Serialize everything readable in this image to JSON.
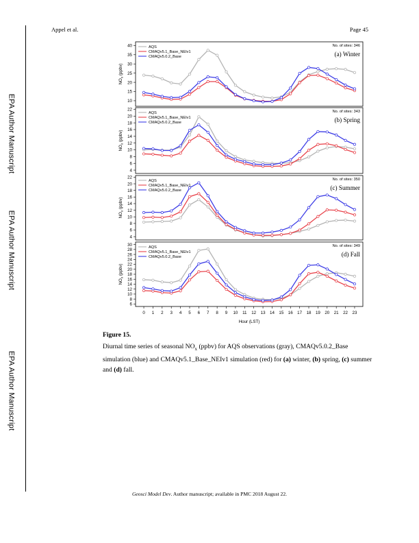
{
  "header": {
    "author": "Appel et al.",
    "page": "Page 45"
  },
  "side_label": "EPA Author Manuscript",
  "footer": {
    "journal": "Geosci Model Dev",
    "rest": ". Author manuscript; available in PMC 2018 August 22."
  },
  "caption": {
    "title": "Figure 15.",
    "text_parts": [
      {
        "t": "Diurnal time series of seasonal NO"
      },
      {
        "t": "x",
        "sub": true
      },
      {
        "t": " (ppbv) for AQS observations (gray), CMAQv5.0.2_Base simulation (blue) and CMAQv5.1_Base_NEIv1 simulation (red) for "
      },
      {
        "t": "(a)",
        "bold": true
      },
      {
        "t": " winter, "
      },
      {
        "t": "(b)",
        "bold": true
      },
      {
        "t": " spring, "
      },
      {
        "t": "(c)",
        "bold": true
      },
      {
        "t": " summer and "
      },
      {
        "t": "(d)",
        "bold": true
      },
      {
        "t": " fall."
      }
    ]
  },
  "colors": {
    "AQS": "#b3b3b3",
    "NEIv1": "#e8424a",
    "Base": "#3b3be6"
  },
  "chart_data": [
    {
      "type": "line",
      "panel_label": "(a) Winter",
      "sites_label": "No. of sites: 346",
      "ylabel": "NOx (ppbv)",
      "ylim": [
        7,
        42
      ],
      "yticks": [
        10,
        15,
        20,
        25,
        30,
        35,
        40
      ],
      "x": [
        0,
        1,
        2,
        3,
        4,
        5,
        6,
        7,
        8,
        9,
        10,
        11,
        12,
        13,
        14,
        15,
        16,
        17,
        18,
        19,
        20,
        21,
        22,
        23
      ],
      "series": [
        {
          "name": "AQS",
          "values": [
            23.9,
            23.4,
            21.9,
            19.7,
            19.1,
            24.4,
            32.4,
            37.4,
            34.7,
            25.7,
            18.4,
            14.9,
            13.1,
            12.0,
            11.5,
            12.1,
            14.6,
            20.2,
            24.1,
            25.9,
            27.1,
            27.4,
            27.0,
            25.3
          ]
        },
        {
          "name": "CMAQv5.1_Base_NEIv1",
          "values": [
            13.2,
            12.6,
            11.5,
            10.7,
            10.9,
            13.5,
            17.2,
            20.4,
            20.4,
            17.1,
            13.0,
            11.0,
            10.2,
            9.7,
            9.7,
            10.6,
            13.8,
            19.8,
            23.7,
            23.9,
            22.0,
            19.6,
            17.0,
            15.5
          ]
        },
        {
          "name": "CMAQv5.0.2_Base",
          "values": [
            14.5,
            13.6,
            12.4,
            11.7,
            11.9,
            15.1,
            19.9,
            23.0,
            22.5,
            17.6,
            13.4,
            11.1,
            10.0,
            9.4,
            9.6,
            11.7,
            16.9,
            24.9,
            28.1,
            27.5,
            24.5,
            21.5,
            18.5,
            16.5
          ]
        }
      ]
    },
    {
      "type": "line",
      "panel_label": "(b) Spring",
      "sites_label": "No. of sites: 343",
      "ylabel": "NOx (ppbv)",
      "ylim": [
        3,
        22.5
      ],
      "yticks": [
        4,
        6,
        8,
        10,
        12,
        14,
        16,
        18,
        20,
        22
      ],
      "x": [
        0,
        1,
        2,
        3,
        4,
        5,
        6,
        7,
        8,
        9,
        10,
        11,
        12,
        13,
        14,
        15,
        16,
        17,
        18,
        19,
        20,
        21,
        22,
        23
      ],
      "series": [
        {
          "name": "AQS",
          "values": [
            10.0,
            10.1,
            9.9,
            9.9,
            10.8,
            14.4,
            19.8,
            17.6,
            12.6,
            9.7,
            8.0,
            7.0,
            6.6,
            6.2,
            6.0,
            6.0,
            6.2,
            6.8,
            7.9,
            9.6,
            10.6,
            11.0,
            10.8,
            10.3
          ]
        },
        {
          "name": "CMAQv5.1_Base_NEIv1",
          "values": [
            8.8,
            8.7,
            8.4,
            8.2,
            9.0,
            12.6,
            14.3,
            12.8,
            9.9,
            7.8,
            6.7,
            5.9,
            5.3,
            5.1,
            5.1,
            5.2,
            5.8,
            7.4,
            9.9,
            11.6,
            11.8,
            11.2,
            10.1,
            9.2
          ]
        },
        {
          "name": "CMAQv5.0.2_Base",
          "values": [
            10.4,
            10.3,
            9.8,
            9.8,
            11.2,
            15.8,
            17.4,
            15.2,
            11.3,
            8.5,
            7.2,
            6.5,
            5.8,
            5.6,
            5.6,
            6.1,
            7.0,
            9.5,
            13.1,
            15.4,
            15.3,
            14.4,
            12.8,
            11.6
          ]
        }
      ]
    },
    {
      "type": "line",
      "panel_label": "(c) Summer",
      "sites_label": "No. of sites: 350",
      "ylabel": "NOx (ppbv)",
      "ylim": [
        3,
        22.5
      ],
      "yticks": [
        4,
        6,
        8,
        10,
        12,
        14,
        16,
        18,
        20,
        22
      ],
      "x": [
        0,
        1,
        2,
        3,
        4,
        5,
        6,
        7,
        8,
        9,
        10,
        11,
        12,
        13,
        14,
        15,
        16,
        17,
        18,
        19,
        20,
        21,
        22,
        23
      ],
      "series": [
        {
          "name": "AQS",
          "values": [
            8.4,
            8.5,
            8.6,
            8.7,
            9.7,
            13.6,
            15.2,
            13.0,
            9.9,
            7.5,
            6.0,
            5.2,
            4.6,
            4.2,
            4.3,
            4.6,
            5.0,
            5.6,
            6.3,
            7.4,
            8.5,
            8.9,
            9.0,
            8.7
          ]
        },
        {
          "name": "CMAQv5.1_Base_NEIv1",
          "values": [
            9.8,
            9.9,
            9.8,
            10.2,
            11.5,
            16.1,
            17.0,
            14.4,
            10.5,
            7.7,
            6.2,
            5.1,
            4.5,
            4.4,
            4.4,
            4.6,
            5.0,
            6.0,
            7.9,
            10.1,
            12.1,
            12.0,
            11.4,
            10.6
          ]
        },
        {
          "name": "CMAQv5.0.2_Base",
          "values": [
            11.3,
            11.4,
            11.3,
            11.8,
            13.8,
            18.8,
            20.3,
            16.4,
            11.6,
            8.5,
            6.8,
            5.8,
            5.1,
            5.1,
            5.4,
            5.9,
            6.9,
            9.1,
            12.8,
            16.1,
            16.6,
            15.5,
            13.7,
            12.2
          ]
        }
      ]
    },
    {
      "type": "line",
      "panel_label": "(d) Fall",
      "sites_label": "No. of sites: 349",
      "ylabel": "NOx (ppbv)",
      "ylim": [
        5,
        31
      ],
      "yticks": [
        6,
        8,
        10,
        12,
        14,
        16,
        18,
        20,
        22,
        24,
        26,
        28,
        30
      ],
      "x": [
        0,
        1,
        2,
        3,
        4,
        5,
        6,
        7,
        8,
        9,
        10,
        11,
        12,
        13,
        14,
        15,
        16,
        17,
        18,
        19,
        20,
        21,
        22,
        23
      ],
      "series": [
        {
          "name": "AQS",
          "values": [
            15.8,
            15.6,
            14.9,
            14.6,
            15.6,
            21.3,
            27.6,
            28.2,
            22.1,
            15.8,
            11.8,
            9.8,
            8.4,
            7.9,
            7.7,
            8.3,
            9.7,
            12.3,
            15.1,
            17.2,
            18.2,
            18.6,
            18.0,
            17.2
          ]
        },
        {
          "name": "CMAQv5.1_Base_NEIv1",
          "values": [
            11.4,
            11.2,
            10.6,
            10.4,
            11.3,
            15.7,
            19.0,
            19.2,
            15.5,
            11.9,
            9.5,
            8.1,
            7.3,
            6.9,
            7.0,
            7.7,
            9.7,
            14.2,
            18.2,
            18.8,
            17.2,
            15.3,
            13.6,
            12.4
          ]
        },
        {
          "name": "CMAQv5.0.2_Base",
          "values": [
            12.6,
            12.1,
            11.4,
            11.2,
            12.6,
            17.7,
            22.2,
            23.2,
            18.4,
            13.7,
            10.6,
            8.9,
            7.8,
            7.4,
            7.6,
            8.8,
            11.8,
            17.6,
            21.6,
            21.8,
            20.1,
            17.9,
            15.9,
            14.1
          ]
        }
      ]
    }
  ],
  "x_axis": {
    "ticks": [
      0,
      1,
      2,
      3,
      4,
      5,
      6,
      7,
      8,
      9,
      10,
      11,
      12,
      13,
      14,
      15,
      16,
      17,
      18,
      19,
      20,
      21,
      22,
      23
    ],
    "label": "Hour (LST)"
  }
}
